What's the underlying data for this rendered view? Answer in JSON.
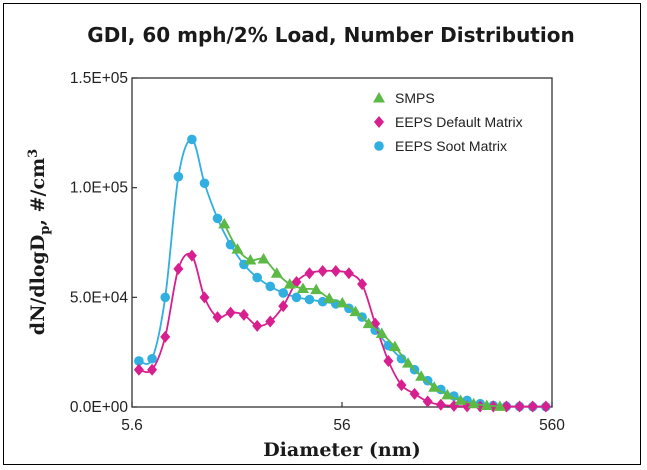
{
  "chart_data": {
    "type": "line",
    "title": "GDI, 60 mph/2% Load, Number Distribution",
    "xlabel": "Diameter (nm)",
    "ylabel_main": "dN/dlogD",
    "ylabel_sub": "p",
    "ylabel_unit": ", #/cm",
    "ylabel_sup": "3",
    "x_scale": "log",
    "xlim": [
      5.6,
      560
    ],
    "ylim": [
      0,
      150000
    ],
    "x_ticks": [
      {
        "value": 5.6,
        "label": "5.6"
      },
      {
        "value": 56,
        "label": "56"
      },
      {
        "value": 560,
        "label": "560"
      }
    ],
    "y_ticks": [
      {
        "value": 0,
        "label": "0.0E+00"
      },
      {
        "value": 50000,
        "label": "5.0E+04"
      },
      {
        "value": 100000,
        "label": "1.0E+05"
      },
      {
        "value": 150000,
        "label": "1.5E+05"
      }
    ],
    "grid": false,
    "legend_position": "top-right",
    "series": [
      {
        "name": "SMPS",
        "color": "#5cb946",
        "marker": "triangle",
        "x": [
          15.4,
          17.8,
          20.5,
          23.7,
          27.4,
          31.6,
          36.5,
          42.2,
          48.7,
          56.2,
          64.9,
          75.0,
          86.6,
          100.0,
          115.5,
          133.4,
          154.0,
          177.8,
          205.4,
          237.1,
          273.8,
          316.2
        ],
        "values": [
          83500,
          72000,
          67000,
          67500,
          61000,
          56000,
          54000,
          53500,
          49500,
          47500,
          43500,
          38000,
          33500,
          27500,
          20000,
          14000,
          9000,
          5500,
          3000,
          1500,
          700,
          300
        ]
      },
      {
        "name": "EEPS Default Matrix",
        "color": "#d81f8f",
        "marker": "diamond",
        "x": [
          6.04,
          6.98,
          8.06,
          9.31,
          10.8,
          12.4,
          14.3,
          16.5,
          19.1,
          22.1,
          25.5,
          29.4,
          34.0,
          39.2,
          45.3,
          52.3,
          60.4,
          69.8,
          80.6,
          93.1,
          107.5,
          124.1,
          143.3,
          165.5,
          191.1,
          220.7,
          254.8,
          294.3,
          339.8,
          392.4,
          453.2,
          523.3
        ],
        "values": [
          17000,
          17000,
          32000,
          63000,
          69000,
          50000,
          41000,
          43000,
          42000,
          37000,
          39000,
          46000,
          57000,
          61000,
          62000,
          62000,
          61000,
          56000,
          38000,
          21000,
          10000,
          6000,
          2500,
          1000,
          500,
          300,
          200,
          200,
          200,
          200,
          200,
          200
        ]
      },
      {
        "name": "EEPS Soot Matrix",
        "color": "#30afe0",
        "marker": "circle",
        "x": [
          6.04,
          6.98,
          8.06,
          9.31,
          10.8,
          12.4,
          14.3,
          16.5,
          19.1,
          22.1,
          25.5,
          29.4,
          34.0,
          39.2,
          45.3,
          52.3,
          60.4,
          69.8,
          80.6,
          93.1,
          107.5,
          124.1,
          143.3,
          165.5,
          191.1,
          220.7,
          254.8,
          294.3,
          339.8,
          392.4,
          453.2,
          523.3
        ],
        "values": [
          21000,
          22000,
          50000,
          105000,
          122000,
          102000,
          86000,
          74000,
          65000,
          59000,
          55000,
          52000,
          50000,
          49000,
          48000,
          47000,
          45000,
          41000,
          35000,
          28000,
          22000,
          17000,
          12000,
          8000,
          5000,
          3000,
          1500,
          700,
          300,
          200,
          100,
          100
        ]
      }
    ]
  }
}
